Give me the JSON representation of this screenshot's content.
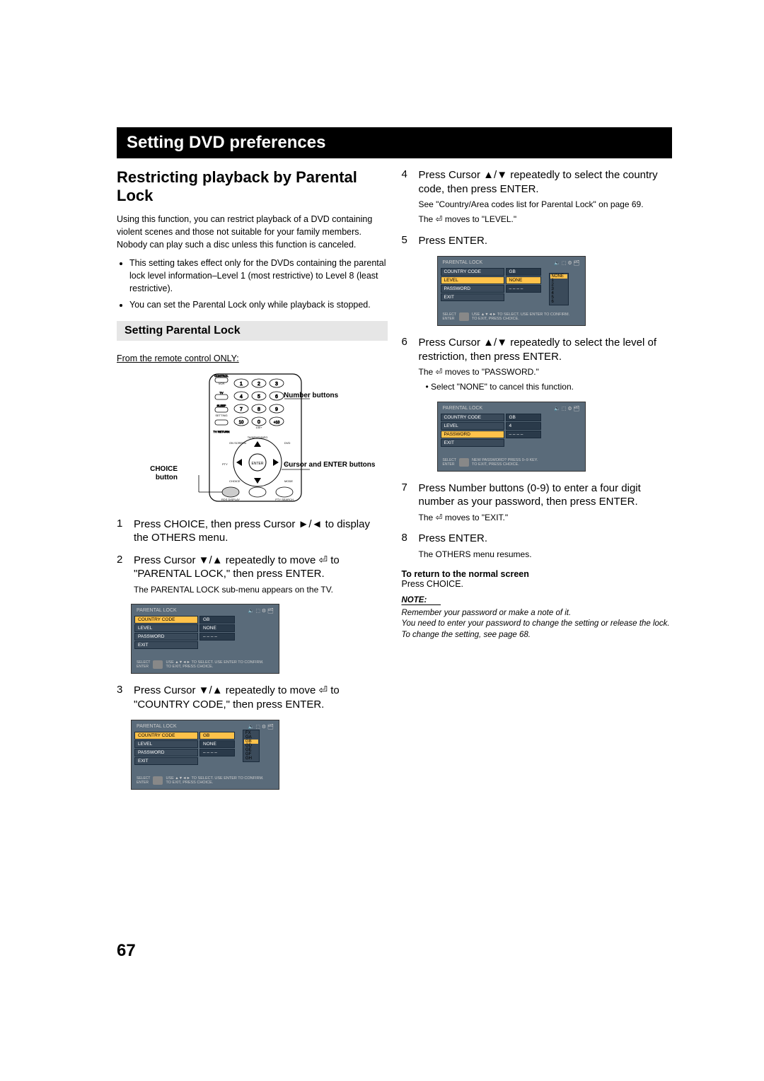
{
  "page_number": "67",
  "title_bar": "Setting DVD preferences",
  "left": {
    "h2": "Restricting playback by Parental Lock",
    "intro": "Using this function, you can restrict playback of a DVD containing violent scenes and those not suitable for your family members. Nobody can play such a disc unless this function is canceled.",
    "bullet1": "This setting takes effect only for the DVDs containing the parental lock level information–Level 1 (most restrictive) to Level 8 (least restrictive).",
    "bullet2": "You can set the Parental Lock only while playback is stopped.",
    "sub_heading": "Setting Parental Lock",
    "from_remote": "From the remote control ONLY:",
    "callout_number": "Number buttons",
    "callout_cursor": "Cursor and ENTER buttons",
    "callout_choice": "CHOICE button",
    "step1": "Press CHOICE, then press Cursor ►/◄ to display the OTHERS menu.",
    "step2": "Press Cursor ▼/▲ repeatedly to move  ⏎  to \"PARENTAL LOCK,\" then press ENTER.",
    "step2_sub": "The PARENTAL LOCK sub-menu appears on the TV.",
    "step3": "Press Cursor ▼/▲ repeatedly to move  ⏎  to \"COUNTRY CODE,\" then press ENTER."
  },
  "right": {
    "step4": "Press Cursor ▲/▼ repeatedly to select the country code, then press ENTER.",
    "step4_sub1": "See \"Country/Area codes list for Parental Lock\" on page 69.",
    "step4_sub2": "The ⏎ moves to \"LEVEL.\"",
    "step5": "Press  ENTER.",
    "step6": "Press Cursor ▲/▼ repeatedly to select the level of restriction, then press ENTER.",
    "step6_sub1": "The ⏎ moves to \"PASSWORD.\"",
    "step6_sub2": "Select \"NONE\" to cancel this function.",
    "step7": "Press Number buttons (0-9) to enter a four digit number as your password, then press ENTER.",
    "step7_sub": "The ⏎ moves to \"EXIT.\"",
    "step8": "Press ENTER.",
    "step8_sub": "The OTHERS menu resumes.",
    "return_bold": "To return to the normal screen",
    "return_text": "Press CHOICE.",
    "note_head": "NOTE:",
    "note_body": "Remember your password or make a note of it.\nYou need to enter your password to change the setting or release the lock. To change the setting, see page 68."
  },
  "menu": {
    "title": "PARENTAL LOCK",
    "country_code": "COUNTRY CODE",
    "level": "LEVEL",
    "password": "PASSWORD",
    "exit": "EXIT",
    "gb": "GB",
    "none": "NONE",
    "four": "4",
    "hint1": "USE ▲▼◄► TO SELECT.  USE ENTER TO CONFIRM.",
    "hint2": "TO EXIT, PRESS CHOICE.",
    "hint3": "NEW PASSWORD? PRESS 0–9 KEY.",
    "select": "SELECT",
    "enter": "ENTER",
    "cc_list": [
      "FX",
      "GA",
      "GB",
      "GD",
      "GE",
      "GF",
      "GH"
    ],
    "lvl_list": [
      "NONE",
      "1",
      "2",
      "3",
      "4",
      "5",
      "6"
    ]
  }
}
